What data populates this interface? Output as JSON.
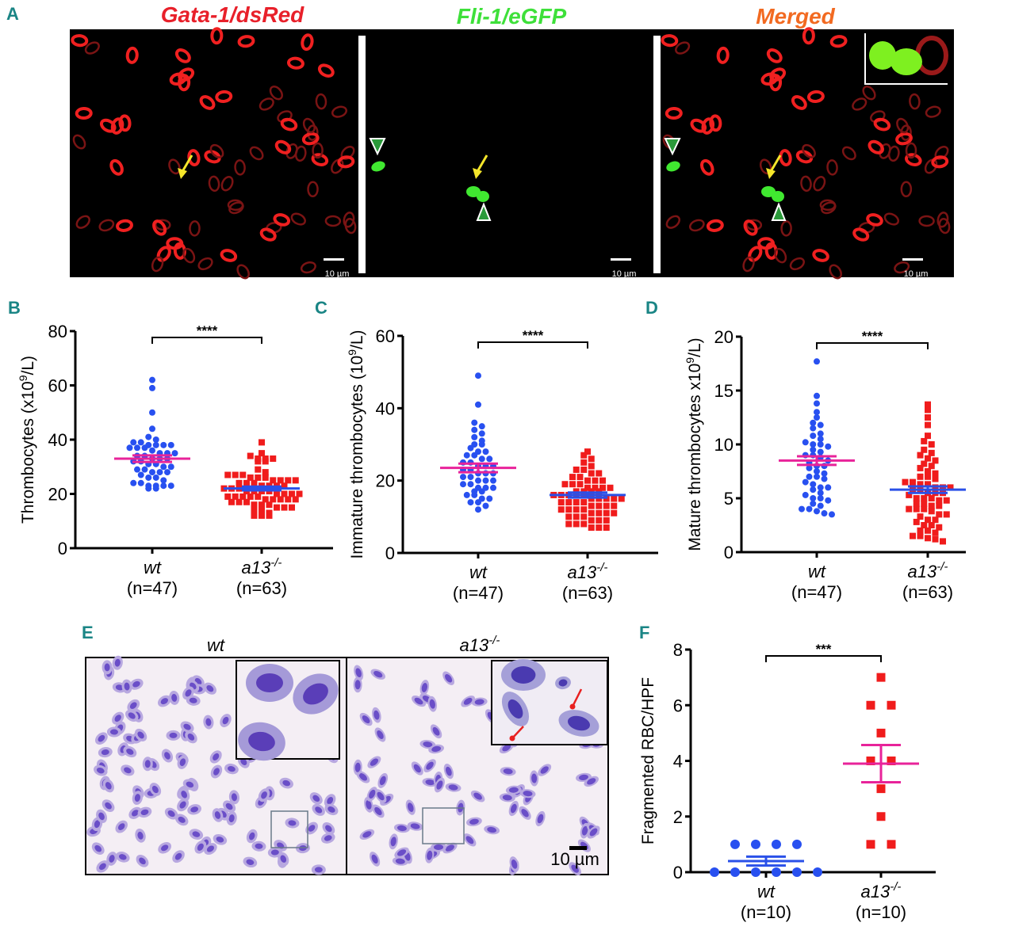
{
  "panel_a": {
    "label": "A",
    "titles": [
      "Gata-1/dsRed",
      "Fli-1/eGFP",
      "Merged"
    ],
    "title_colors": [
      "#e8202a",
      "#3ee03a",
      "#f26a21"
    ],
    "scale_bar": "10 µm"
  },
  "panel_e": {
    "label": "E",
    "titles": {
      "wt": "wt",
      "mut_base": "a13",
      "mut_sup": "-/-"
    },
    "scale_bar": "10 µm"
  },
  "colors": {
    "wt_points": "#2850f0",
    "mut_points": "#f01c1c",
    "wt_mean": "#e8239a",
    "mut_mean": "#2a50e8"
  },
  "chart_data": [
    {
      "id": "B",
      "label": "B",
      "type": "scatter",
      "ylabel_pre": "Thrombocytes (x10",
      "ylabel_sup": "9",
      "ylabel_post": "/L)",
      "ylim": [
        0,
        80
      ],
      "yticks": [
        "0",
        "20",
        "40",
        "60",
        "80"
      ],
      "significance": "****",
      "groups": [
        {
          "name": "wt",
          "n_label": "(n=47)",
          "mean": 33,
          "sem": 1.2,
          "values": [
            62,
            59,
            50,
            44,
            41,
            40,
            39,
            39,
            38,
            38,
            38,
            38,
            37,
            37,
            37,
            36,
            35,
            35,
            35,
            34,
            34,
            33,
            33,
            33,
            32,
            32,
            31,
            31,
            30,
            30,
            29,
            29,
            28,
            28,
            28,
            27,
            26,
            26,
            25,
            24,
            24,
            23,
            23,
            23,
            23,
            22,
            22
          ]
        },
        {
          "name_base": "a13",
          "name_sup": "-/-",
          "n_label": "(n=63)",
          "mean": 22,
          "sem": 0.7,
          "values": [
            39,
            35,
            34,
            33,
            33,
            33,
            32,
            32,
            29,
            28,
            27,
            27,
            27,
            26,
            26,
            26,
            25,
            25,
            25,
            25,
            24,
            24,
            24,
            23,
            23,
            23,
            23,
            22,
            22,
            22,
            21,
            21,
            21,
            21,
            20,
            20,
            20,
            20,
            19,
            19,
            19,
            19,
            19,
            18,
            18,
            18,
            18,
            18,
            17,
            17,
            17,
            16,
            16,
            16,
            15,
            15,
            15,
            14,
            14,
            13,
            12,
            12,
            12
          ]
        }
      ]
    },
    {
      "id": "C",
      "label": "C",
      "type": "scatter",
      "ylabel_pre": "Immature thrombocytes (10",
      "ylabel_sup": "9",
      "ylabel_post": "/L)",
      "ylim": [
        0,
        60
      ],
      "yticks": [
        "0",
        "20",
        "40",
        "60"
      ],
      "significance": "****",
      "groups": [
        {
          "name": "wt",
          "n_label": "(n=47)",
          "mean": 23.5,
          "sem": 1.2,
          "values": [
            49,
            41,
            36,
            35,
            34,
            33,
            32,
            31,
            30,
            30,
            29,
            28,
            28,
            27,
            27,
            26,
            26,
            25,
            25,
            24,
            24,
            24,
            23,
            23,
            22,
            22,
            22,
            21,
            21,
            20,
            20,
            20,
            19,
            19,
            18,
            18,
            18,
            17,
            17,
            16,
            16,
            15,
            15,
            14,
            14,
            13,
            12
          ]
        },
        {
          "name_base": "a13",
          "name_sup": "-/-",
          "n_label": "(n=63)",
          "mean": 16,
          "sem": 0.7,
          "values": [
            28,
            27,
            26,
            25,
            24,
            23,
            23,
            22,
            22,
            21,
            21,
            20,
            20,
            20,
            19,
            19,
            19,
            18,
            18,
            18,
            18,
            17,
            17,
            17,
            17,
            16,
            16,
            16,
            16,
            16,
            15,
            15,
            15,
            15,
            15,
            14,
            14,
            14,
            14,
            13,
            13,
            13,
            13,
            12,
            12,
            12,
            12,
            11,
            11,
            11,
            11,
            10,
            10,
            10,
            9,
            9,
            9,
            8,
            8,
            8,
            7,
            7,
            7
          ]
        }
      ]
    },
    {
      "id": "D",
      "label": "D",
      "type": "scatter",
      "ylabel_pre": "Mature thrombocytes x10",
      "ylabel_sup": "9",
      "ylabel_post": "/L)",
      "ylim": [
        0,
        20
      ],
      "yticks": [
        "0",
        "5",
        "10",
        "15",
        "20"
      ],
      "significance": "****",
      "groups": [
        {
          "name": "wt",
          "n_label": "(n=47)",
          "mean": 8.5,
          "sem": 0.4,
          "values": [
            17.7,
            14.5,
            13.8,
            13,
            12.5,
            12,
            11.8,
            11.5,
            11,
            10.8,
            10.5,
            10.2,
            10,
            10,
            9.8,
            9.5,
            9.3,
            9,
            9,
            8.8,
            8.5,
            8.3,
            8,
            8,
            7.8,
            7.5,
            7.3,
            7,
            7,
            6.8,
            6.5,
            6.3,
            6,
            6,
            5.8,
            5.5,
            5.3,
            5,
            5,
            4.8,
            4.5,
            4.3,
            4,
            4,
            3.8,
            3.6,
            3.5
          ]
        },
        {
          "name_base": "a13",
          "name_sup": "-/-",
          "n_label": "(n=63)",
          "mean": 5.8,
          "sem": 0.3,
          "values": [
            13.7,
            13.2,
            12.5,
            11.8,
            10.8,
            10.3,
            10,
            9.5,
            9.2,
            9,
            8.7,
            8.5,
            8.2,
            8,
            7.8,
            7.5,
            7.3,
            7,
            7,
            6.8,
            6.5,
            6.5,
            6.3,
            6.3,
            6,
            6,
            6,
            5.8,
            5.8,
            5.5,
            5.5,
            5.5,
            5.3,
            5,
            5,
            5,
            4.8,
            4.8,
            4.5,
            4.5,
            4.3,
            4.3,
            4,
            4,
            4,
            3.8,
            3.5,
            3.5,
            3.3,
            3,
            3,
            2.8,
            2.5,
            2.5,
            2.3,
            2,
            2,
            1.8,
            1.5,
            1.5,
            1.3,
            1.2,
            1
          ]
        }
      ]
    },
    {
      "id": "F",
      "label": "F",
      "type": "scatter",
      "ylabel_pre": "Fragmented RBC/HPF",
      "ylabel_sup": "",
      "ylabel_post": "",
      "ylim": [
        0,
        8
      ],
      "yticks": [
        "0",
        "2",
        "4",
        "6",
        "8"
      ],
      "significance": "***",
      "groups": [
        {
          "name": "wt",
          "n_label": "(n=10)",
          "mean": 0.4,
          "sem": 0.16,
          "values": [
            0,
            0,
            0,
            0,
            0,
            0,
            1,
            1,
            1,
            1
          ]
        },
        {
          "name_base": "a13",
          "name_sup": "-/-",
          "n_label": "(n=10)",
          "mean": 3.9,
          "sem": 0.67,
          "values": [
            7,
            6,
            6,
            5,
            4,
            4,
            3,
            2,
            1,
            1
          ]
        }
      ]
    }
  ]
}
